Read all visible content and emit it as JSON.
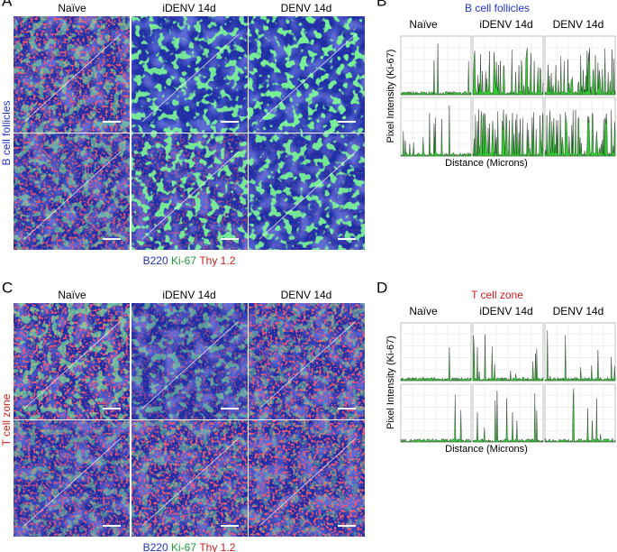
{
  "panels": [
    {
      "letter": "A",
      "columns": [
        "Naïve",
        "iDENV 14d",
        "DENV 14d"
      ],
      "row_label": "B cell follicles",
      "legend": [
        "B220",
        "Ki-67",
        "Thy 1.2"
      ]
    },
    {
      "letter": "B",
      "title": "B cell follicles",
      "columns": [
        "Naïve",
        "iDENV 14d",
        "DENV 14d"
      ],
      "y_label": "Pixel Intensity (Ki-67)",
      "x_label": "Distance (Microns)"
    },
    {
      "letter": "C",
      "columns": [
        "Naïve",
        "iDENV 14d",
        "DENV 14d"
      ],
      "row_label": "T cell zone",
      "legend": [
        "B220",
        "Ki-67",
        "Thy 1.2"
      ]
    },
    {
      "letter": "D",
      "title": "T cell zone",
      "columns": [
        "Naïve",
        "iDENV 14d",
        "DENV 14d"
      ],
      "y_label": "Pixel Intensity (Ki-67)",
      "x_label": "Distance (Microns)"
    }
  ]
}
